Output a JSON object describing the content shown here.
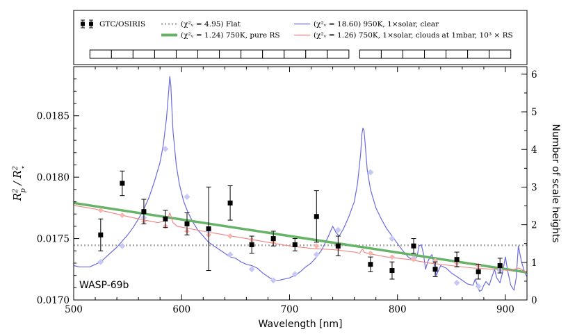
{
  "chart_data": {
    "type": "line",
    "title": "",
    "annotation": "WASP-69b",
    "xlabel": "Wavelength [nm]",
    "ylabel_left": "R_p^2 / R_⋆^2",
    "ylabel_right": "Number of scale heights",
    "xlim": [
      500,
      920
    ],
    "ylim": [
      0.017,
      0.0189
    ],
    "ylim_right": [
      0,
      6.2
    ],
    "x_ticks": [
      "500",
      "600",
      "700",
      "800",
      "900"
    ],
    "y_ticks": [
      "0.0170",
      "0.0175",
      "0.0180",
      "0.0185"
    ],
    "y_ticks_right": [
      "0",
      "1",
      "2",
      "3",
      "4",
      "5",
      "6"
    ],
    "legend": {
      "placement": "top, outside plot",
      "entries": [
        {
          "key": "obs",
          "label": "GTC/OSIRIS"
        },
        {
          "key": "flat",
          "label": "(χ²ᵥ = 4.95) Flat"
        },
        {
          "key": "rs",
          "label": "(χ²ᵥ = 1.24) 750K, pure RS"
        },
        {
          "key": "clear",
          "label": "(χ²ᵥ = 18.60) 950K, 1×solar, clear"
        },
        {
          "key": "clouds",
          "label": "(χ²ᵥ = 1.26) 750K, 1×solar, clouds at 1mbar, 10³ × RS"
        }
      ]
    },
    "observations": {
      "name": "GTC/OSIRIS",
      "x": [
        525,
        545,
        565,
        585,
        605,
        625,
        645,
        665,
        685,
        705,
        725,
        745,
        775,
        795,
        815,
        835,
        855,
        875,
        895
      ],
      "y": [
        0.01753,
        0.01795,
        0.01772,
        0.01766,
        0.01762,
        0.01758,
        0.01779,
        0.01745,
        0.0175,
        0.01745,
        0.01768,
        0.01744,
        0.01729,
        0.01724,
        0.01744,
        0.01725,
        0.01733,
        0.01723,
        0.01728
      ],
      "yerr": [
        0.00013,
        0.0001,
        0.0001,
        7e-05,
        9e-05,
        0.00034,
        0.00014,
        7e-05,
        6e-05,
        5e-05,
        0.00021,
        8e-05,
        6e-05,
        7e-05,
        6e-05,
        6e-05,
        6e-05,
        6e-05,
        6e-05
      ]
    },
    "bins": [
      [
        515,
        535
      ],
      [
        535,
        555
      ],
      [
        555,
        575
      ],
      [
        575,
        595
      ],
      [
        595,
        615
      ],
      [
        615,
        635
      ],
      [
        635,
        655
      ],
      [
        655,
        675
      ],
      [
        675,
        695
      ],
      [
        695,
        715
      ],
      [
        715,
        735
      ],
      [
        735,
        755
      ],
      [
        765,
        785
      ],
      [
        785,
        805
      ],
      [
        805,
        825
      ],
      [
        825,
        845
      ],
      [
        845,
        865
      ],
      [
        865,
        885
      ],
      [
        885,
        905
      ]
    ],
    "flat_model": {
      "name": "Flat",
      "y": 0.017445
    },
    "rs_model": {
      "name": "750K, pure RS",
      "y_at_500": 0.01779,
      "y_at_920": 0.017225
    },
    "clear_model_binned": {
      "x": [
        525,
        545,
        565,
        585,
        605,
        625,
        645,
        665,
        685,
        705,
        725,
        745,
        775,
        795,
        815,
        835,
        855,
        875,
        895
      ],
      "y": [
        0.01731,
        0.01744,
        0.01767,
        0.01823,
        0.01784,
        0.01756,
        0.01737,
        0.01725,
        0.01716,
        0.01721,
        0.01737,
        0.01757,
        0.01804,
        0.0175,
        0.01734,
        0.01726,
        0.01714,
        0.01711,
        0.01724
      ]
    },
    "clouds_model_binned": {
      "x": [
        525,
        545,
        565,
        585,
        605,
        625,
        645,
        665,
        685,
        705,
        725,
        745,
        775,
        795,
        815,
        835,
        855,
        875,
        895
      ],
      "y": [
        0.01773,
        0.01769,
        0.01764,
        0.0176,
        0.01756,
        0.01753,
        0.01752,
        0.01749,
        0.01747,
        0.01745,
        0.01744,
        0.01742,
        0.01738,
        0.01735,
        0.01733,
        0.01732,
        0.0173,
        0.01728,
        0.01727
      ]
    },
    "clear_model_curve": {
      "x": [
        500,
        505,
        510,
        515,
        520,
        525,
        530,
        535,
        540,
        545,
        550,
        555,
        560,
        565,
        570,
        575,
        580,
        583,
        586,
        588,
        589,
        590,
        592,
        595,
        598,
        602,
        606,
        610,
        615,
        620,
        625,
        630,
        635,
        640,
        645,
        650,
        655,
        660,
        665,
        670,
        675,
        680,
        685,
        690,
        695,
        700,
        705,
        710,
        715,
        720,
        725,
        730,
        735,
        740,
        743,
        746,
        750,
        755,
        760,
        763,
        766,
        767,
        768,
        769,
        770,
        772,
        775,
        780,
        785,
        790,
        795,
        800,
        805,
        810,
        815,
        818,
        820,
        822,
        824,
        826,
        828,
        830,
        832,
        834,
        836,
        838,
        840,
        845,
        850,
        855,
        860,
        865,
        870,
        872,
        874,
        876,
        878,
        880,
        882,
        885,
        888,
        890,
        892,
        895,
        897,
        900,
        902,
        905,
        908,
        910,
        912,
        915,
        918,
        920
      ],
      "y": [
        0.01728,
        0.01727,
        0.01727,
        0.01727,
        0.01729,
        0.01731,
        0.01735,
        0.01739,
        0.01743,
        0.01748,
        0.01753,
        0.01759,
        0.01766,
        0.01774,
        0.01784,
        0.01797,
        0.01812,
        0.01826,
        0.01848,
        0.0187,
        0.01882,
        0.01875,
        0.01838,
        0.0181,
        0.01794,
        0.0178,
        0.01771,
        0.01764,
        0.01757,
        0.01752,
        0.01747,
        0.01744,
        0.01741,
        0.01738,
        0.01735,
        0.01734,
        0.01731,
        0.01729,
        0.01728,
        0.01726,
        0.01722,
        0.01719,
        0.01716,
        0.01716,
        0.01717,
        0.01718,
        0.0172,
        0.01723,
        0.01727,
        0.0173,
        0.01735,
        0.01741,
        0.0175,
        0.0176,
        0.01755,
        0.01752,
        0.01758,
        0.01768,
        0.0178,
        0.01795,
        0.0182,
        0.01835,
        0.0184,
        0.01838,
        0.01828,
        0.01806,
        0.0179,
        0.01775,
        0.01766,
        0.01758,
        0.01752,
        0.01746,
        0.0174,
        0.01735,
        0.01732,
        0.01735,
        0.01744,
        0.01745,
        0.01738,
        0.01725,
        0.01731,
        0.01735,
        0.01737,
        0.01729,
        0.0172,
        0.01724,
        0.01728,
        0.01726,
        0.01722,
        0.01719,
        0.01716,
        0.01713,
        0.01712,
        0.01717,
        0.01712,
        0.01707,
        0.01708,
        0.01712,
        0.01715,
        0.01712,
        0.0172,
        0.01725,
        0.01718,
        0.01714,
        0.01721,
        0.01735,
        0.01724,
        0.01712,
        0.01708,
        0.01718,
        0.01744,
        0.01731,
        0.01722,
        0.01719
      ]
    },
    "clouds_model_curve": {
      "x": [
        500,
        520,
        540,
        560,
        578,
        583,
        586,
        588,
        589,
        590,
        592,
        596,
        620,
        640,
        660,
        680,
        700,
        720,
        740,
        760,
        765,
        767,
        768,
        769,
        772,
        790,
        810,
        830,
        850,
        870,
        890,
        905,
        912,
        915,
        918,
        920
      ],
      "y": [
        0.01777,
        0.01774,
        0.0177,
        0.01766,
        0.01763,
        0.01764,
        0.01766,
        0.01768,
        0.01771,
        0.01769,
        0.01763,
        0.0176,
        0.01756,
        0.01753,
        0.0175,
        0.01747,
        0.01744,
        0.01742,
        0.01741,
        0.01739,
        0.01738,
        0.01741,
        0.01741,
        0.01739,
        0.01738,
        0.01735,
        0.01733,
        0.0173,
        0.01728,
        0.01726,
        0.01725,
        0.01724,
        0.01726,
        0.01725,
        0.01723,
        0.01723
      ]
    },
    "colors": {
      "observations": "#000000",
      "flat": "#aaaaaa",
      "rs": "#66b266",
      "clear": "#6a6ae0",
      "clear_binned": "#c8c8f4",
      "clouds": "#f08080",
      "clouds_binned": "#f7b5b0"
    }
  }
}
